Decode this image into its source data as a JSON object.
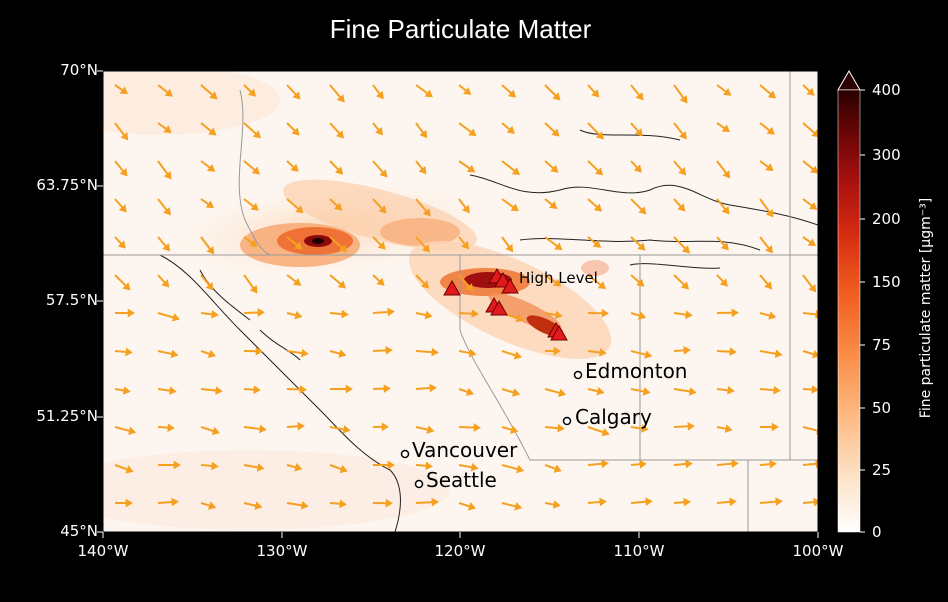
{
  "title": "Fine Particulate Matter",
  "axes": {
    "lat_ticks": [
      "70°N",
      "63.75°N",
      "57.5°N",
      "51.25°N",
      "45°N"
    ],
    "lon_ticks": [
      "140°W",
      "130°W",
      "120°W",
      "110°W",
      "100°W"
    ]
  },
  "colorbar": {
    "label": "Fine particulate matter [μgm⁻³]",
    "ticks": [
      "400",
      "300",
      "200",
      "150",
      "100",
      "75",
      "50",
      "25",
      "0"
    ],
    "colors": [
      "#ffffff",
      "#fde3c8",
      "#fdb47a",
      "#f98640",
      "#ef5a1e",
      "#d42a10",
      "#a50f0f",
      "#6b0606",
      "#2a0000"
    ]
  },
  "cities": [
    {
      "name": "High Level"
    },
    {
      "name": "Edmonton"
    },
    {
      "name": "Calgary"
    },
    {
      "name": "Vancouver"
    },
    {
      "name": "Seattle"
    }
  ],
  "colors": {
    "wind_arrows": "#f5a020",
    "fire_marker": "#e31a1c",
    "background": "#000000"
  }
}
